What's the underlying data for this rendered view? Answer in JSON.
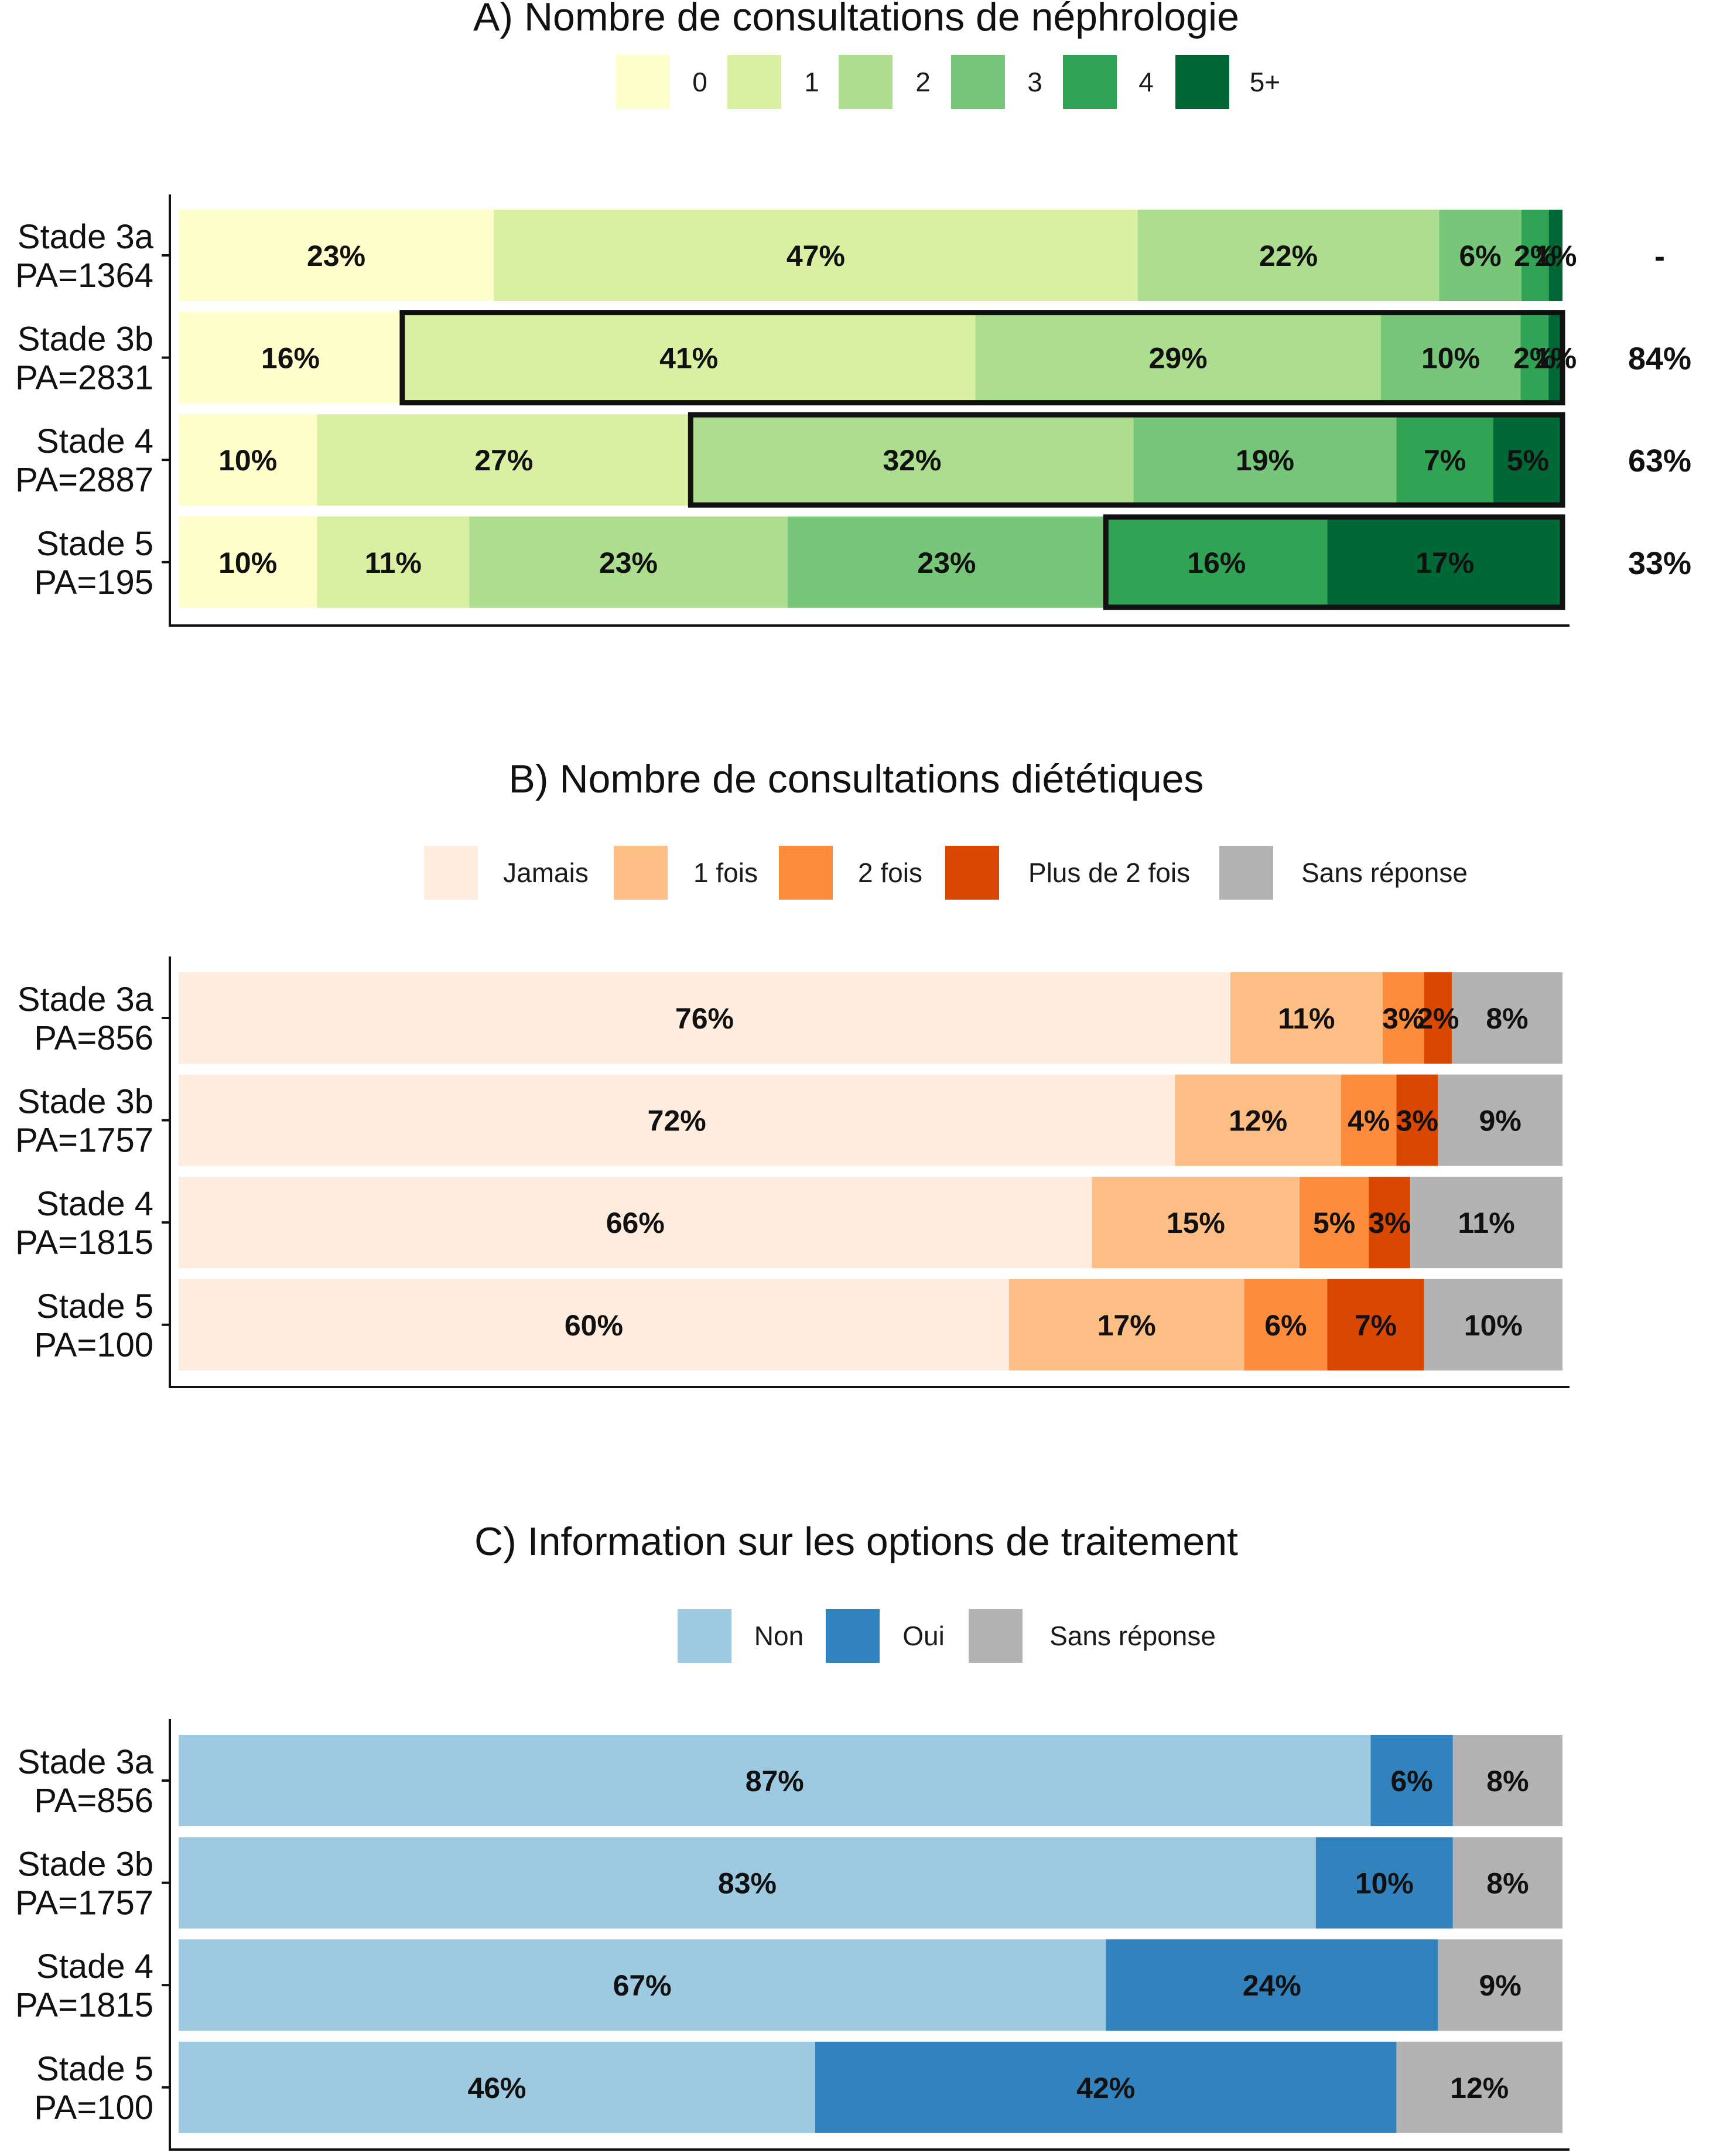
{
  "chart_data": [
    {
      "type": "bar",
      "orientation": "horizontal-stacked-percent",
      "title": "A) Nombre de consultations de néphrologie",
      "categories": [
        {
          "line1": "Stade 3a",
          "line2": "PA=1364"
        },
        {
          "line1": "Stade 3b",
          "line2": "PA=2831"
        },
        {
          "line1": "Stade 4",
          "line2": "PA=2887"
        },
        {
          "line1": "Stade 5",
          "line2": "PA=195"
        }
      ],
      "series": [
        {
          "name": "0",
          "color": "#ffffcc",
          "values": [
            23,
            16,
            10,
            10
          ],
          "labels": [
            "23%",
            "16%",
            "10%",
            "10%"
          ]
        },
        {
          "name": "1",
          "color": "#d9f0a3",
          "values": [
            47,
            41,
            27,
            11
          ],
          "labels": [
            "47%",
            "41%",
            "27%",
            "11%"
          ]
        },
        {
          "name": "2",
          "color": "#addd8e",
          "values": [
            22,
            29,
            32,
            23
          ],
          "labels": [
            "22%",
            "29%",
            "32%",
            "23%"
          ]
        },
        {
          "name": "3",
          "color": "#78c679",
          "values": [
            6,
            10,
            19,
            23
          ],
          "labels": [
            "6%",
            "10%",
            "19%",
            "23%"
          ]
        },
        {
          "name": "4",
          "color": "#31a354",
          "values": [
            2,
            2,
            7,
            16
          ],
          "labels": [
            "2%",
            "2%",
            "7%",
            "16%"
          ]
        },
        {
          "name": "5+",
          "color": "#006837",
          "values": [
            1,
            1,
            5,
            17
          ],
          "labels": [
            "1%",
            "1%",
            "5%",
            "17%"
          ]
        }
      ],
      "side_labels": [
        "-",
        "84%",
        "63%",
        "33%"
      ],
      "highlight_from_series": [
        null,
        1,
        2,
        4
      ],
      "xlim": [
        0,
        100
      ],
      "legend_position": "top"
    },
    {
      "type": "bar",
      "orientation": "horizontal-stacked-percent",
      "title": "B) Nombre de consultations diététiques",
      "categories": [
        {
          "line1": "Stade 3a",
          "line2": "PA=856"
        },
        {
          "line1": "Stade 3b",
          "line2": "PA=1757"
        },
        {
          "line1": "Stade 4",
          "line2": "PA=1815"
        },
        {
          "line1": "Stade 5",
          "line2": "PA=100"
        }
      ],
      "series": [
        {
          "name": "Jamais",
          "color": "#feeddf",
          "values": [
            76,
            72,
            66,
            60
          ],
          "labels": [
            "76%",
            "72%",
            "66%",
            "60%"
          ]
        },
        {
          "name": "1 fois",
          "color": "#fdbe85",
          "values": [
            11,
            12,
            15,
            17
          ],
          "labels": [
            "11%",
            "12%",
            "15%",
            "17%"
          ]
        },
        {
          "name": "2 fois",
          "color": "#fd8d3c",
          "values": [
            3,
            4,
            5,
            6
          ],
          "labels": [
            "3%",
            "4%",
            "5%",
            "6%"
          ]
        },
        {
          "name": "Plus de 2 fois",
          "color": "#d94701",
          "values": [
            2,
            3,
            3,
            7
          ],
          "labels": [
            "2%",
            "3%",
            "3%",
            "7%"
          ]
        },
        {
          "name": "Sans réponse",
          "color": "#b3b3b3",
          "values": [
            8,
            9,
            11,
            10
          ],
          "labels": [
            "8%",
            "9%",
            "11%",
            "10%"
          ]
        }
      ],
      "xlim": [
        0,
        100
      ],
      "legend_position": "top"
    },
    {
      "type": "bar",
      "orientation": "horizontal-stacked-percent",
      "title": "C) Information sur les options de traitement",
      "categories": [
        {
          "line1": "Stade 3a",
          "line2": "PA=856"
        },
        {
          "line1": "Stade 3b",
          "line2": "PA=1757"
        },
        {
          "line1": "Stade 4",
          "line2": "PA=1815"
        },
        {
          "line1": "Stade 5",
          "line2": "PA=100"
        }
      ],
      "series": [
        {
          "name": "Non",
          "color": "#9ecae1",
          "values": [
            87,
            83,
            67,
            46
          ],
          "labels": [
            "87%",
            "83%",
            "67%",
            "46%"
          ]
        },
        {
          "name": "Oui",
          "color": "#3182bd",
          "values": [
            6,
            10,
            24,
            42
          ],
          "labels": [
            "6%",
            "10%",
            "24%",
            "42%"
          ]
        },
        {
          "name": "Sans réponse",
          "color": "#b3b3b3",
          "values": [
            8,
            8,
            9,
            12
          ],
          "labels": [
            "8%",
            "8%",
            "9%",
            "12%"
          ]
        }
      ],
      "xlim": [
        0,
        100
      ],
      "legend_position": "top"
    }
  ]
}
